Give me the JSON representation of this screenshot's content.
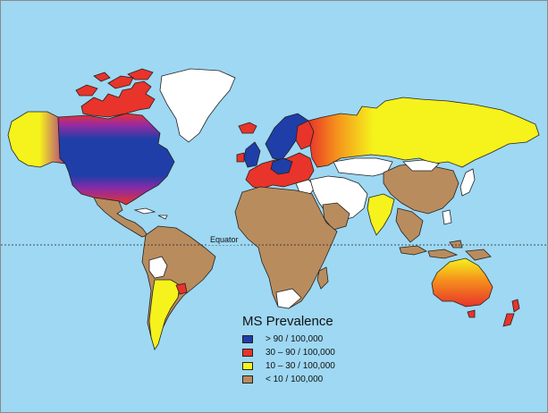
{
  "map": {
    "equator_label": "Equator",
    "legend": {
      "title": "MS Prevalence",
      "items": [
        {
          "label": "> 90 / 100,000",
          "color": "#1f3ea8"
        },
        {
          "label": "30 – 90 / 100,000",
          "color": "#e8342a"
        },
        {
          "label": "10 – 30 / 100,000",
          "color": "#f5f21c"
        },
        {
          "label": "< 10 / 100,000",
          "color": "#b98c5e"
        }
      ]
    },
    "colors": {
      "ocean": "#9ed8f3",
      "no_data": "#ffffff",
      "high": "#1f3ea8",
      "medium": "#e8342a",
      "low": "#f5f21c",
      "very_low": "#b98c5e",
      "gradient_purple": "#8a2aa8",
      "gradient_orange": "#f59a1c"
    }
  }
}
